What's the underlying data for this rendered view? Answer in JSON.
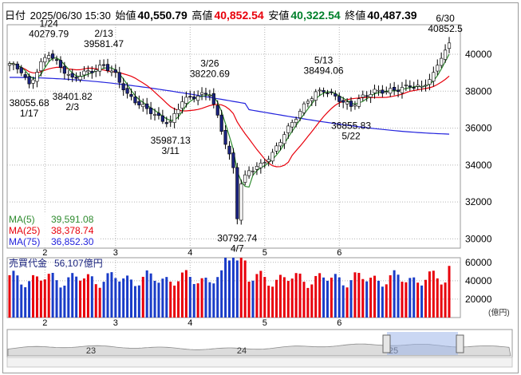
{
  "header": {
    "date_label": "日付",
    "datetime": "2025/06/30 15:30",
    "open_label": "始値",
    "open": "40,550.79",
    "high_label": "高値",
    "high": "40,852.54",
    "low_label": "安値",
    "low": "40,322.54",
    "close_label": "終値",
    "close": "40,487.39"
  },
  "ma_legend": [
    {
      "label": "MA(5)",
      "value": "39,591.08",
      "color": "#2e8b2e"
    },
    {
      "label": "MA(25)",
      "value": "38,378.74",
      "color": "#e8000b"
    },
    {
      "label": "MA(75)",
      "value": "36,852.30",
      "color": "#2222dd"
    }
  ],
  "volume_legend": {
    "label": "売買代金",
    "value": "56,107億円"
  },
  "volume_unit": "(億円)",
  "colors": {
    "up": "#ffffff",
    "down": "#1a237e",
    "vol_up": "#e8000b",
    "vol_down": "#1a3cc8",
    "ma5": "#2e8b2e",
    "ma25": "#e8000b",
    "ma75": "#2222dd",
    "grid": "#b4b4b4"
  },
  "chart_data": [
    {
      "type": "candlestick",
      "title": "",
      "y_ticks": [
        30000,
        32000,
        34000,
        36000,
        38000,
        40000
      ],
      "ylim": [
        29500,
        41600
      ],
      "x_month_labels": [
        {
          "label": "2",
          "index": 9
        },
        {
          "label": "3",
          "index": 27
        },
        {
          "label": "4",
          "index": 46
        },
        {
          "label": "5",
          "index": 65
        },
        {
          "label": "6",
          "index": 84
        }
      ],
      "grid": true,
      "annotations": [
        {
          "date": "1/17",
          "value": "38055.68",
          "index": 5,
          "position": "below"
        },
        {
          "date": "1/24",
          "value": "40279.79",
          "index": 10,
          "position": "above"
        },
        {
          "date": "2/3",
          "value": "38401.82",
          "index": 16,
          "position": "below"
        },
        {
          "date": "2/13",
          "value": "39581.47",
          "index": 24,
          "position": "above"
        },
        {
          "date": "3/11",
          "value": "35987.13",
          "index": 41,
          "position": "below"
        },
        {
          "date": "3/26",
          "value": "38220.69",
          "index": 51,
          "position": "above"
        },
        {
          "date": "4/7",
          "value": "30792.74",
          "index": 58,
          "position": "below"
        },
        {
          "date": "5/13",
          "value": "38494.06",
          "index": 80,
          "position": "above"
        },
        {
          "date": "5/22",
          "value": "36855.83",
          "index": 87,
          "position": "below"
        },
        {
          "date": "6/30",
          "value": "40852.5",
          "index": 111,
          "position": "above"
        }
      ]
    },
    {
      "type": "bar",
      "title": "売買代金",
      "y_ticks": [
        20000,
        40000,
        60000
      ],
      "unit": "億円",
      "ylim": [
        0,
        65000
      ],
      "latest": 56107
    },
    {
      "type": "area",
      "title": "navigator",
      "x_labels": [
        "23",
        "24",
        "25"
      ]
    }
  ]
}
